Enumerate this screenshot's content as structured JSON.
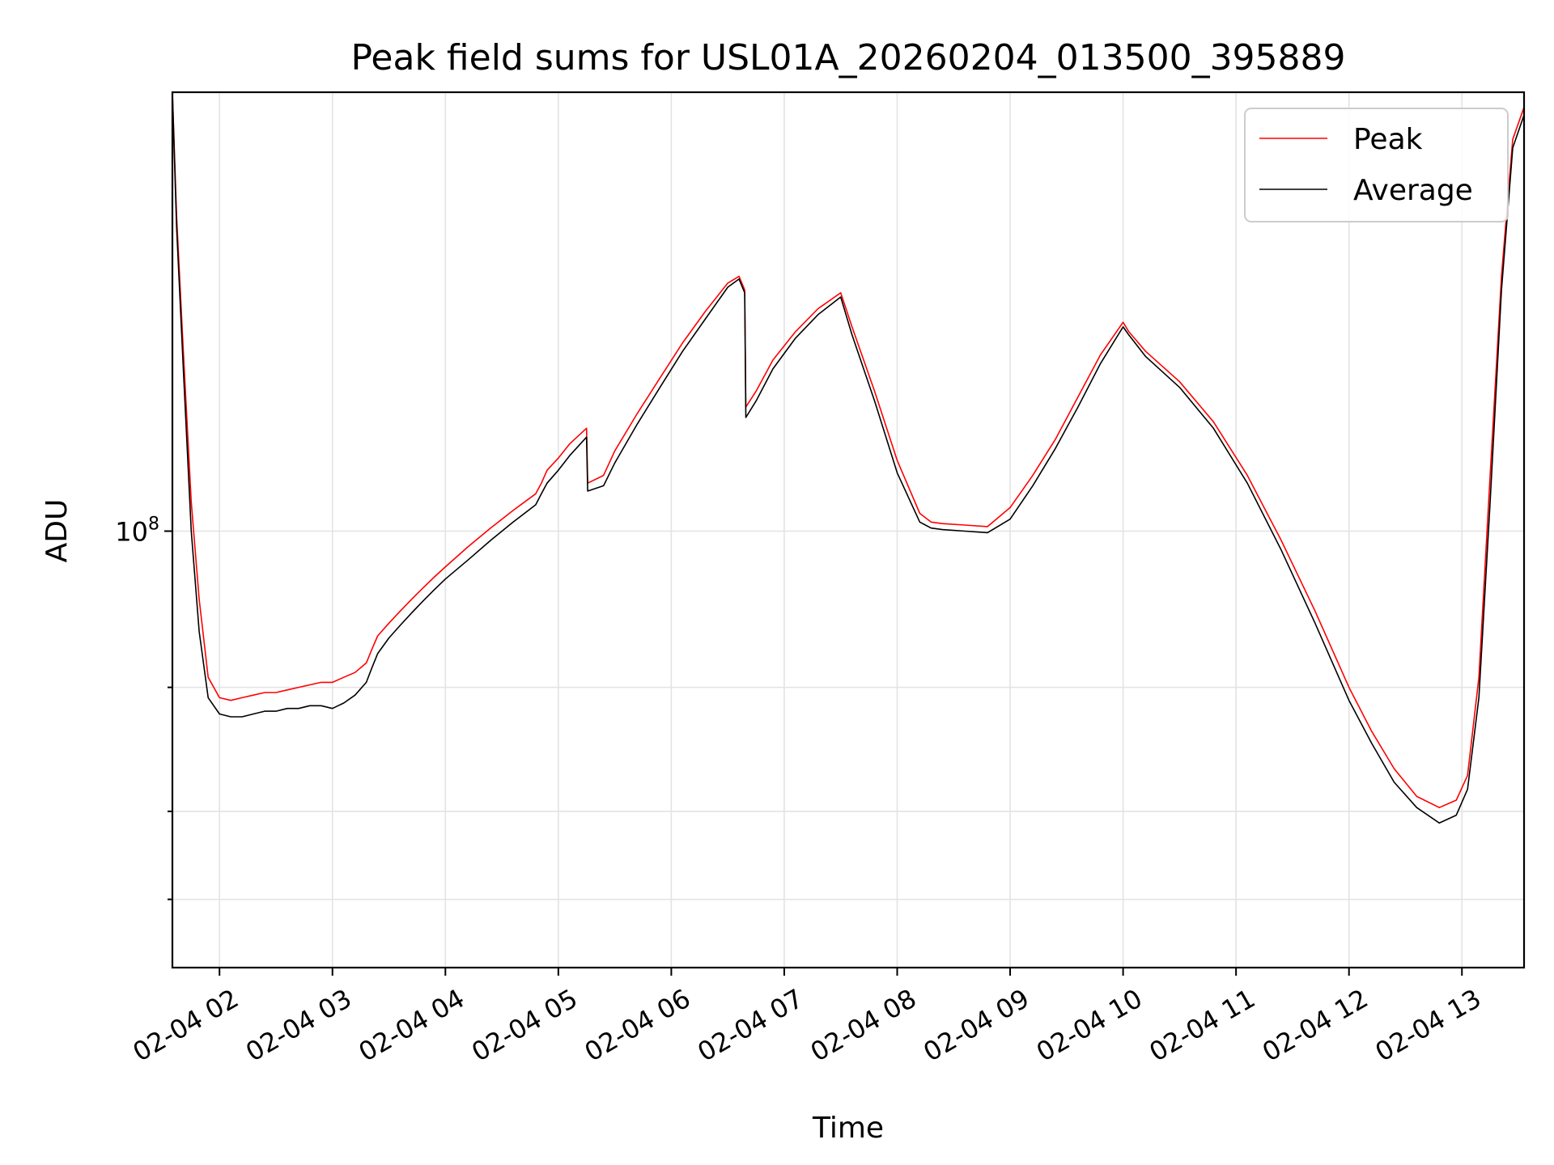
{
  "chart_data": {
    "type": "line",
    "title": "Peak field sums for USL01A_20260204_013500_395889",
    "xlabel": "Time",
    "ylabel": "ADU",
    "x_ticks": [
      "02-04 02",
      "02-04 03",
      "02-04 04",
      "02-04 05",
      "02-04 06",
      "02-04 07",
      "02-04 08",
      "02-04 09",
      "02-04 10",
      "02-04 11",
      "02-04 12",
      "02-04 13"
    ],
    "x_tick_hours": [
      2,
      3,
      4,
      5,
      6,
      7,
      8,
      9,
      10,
      11,
      12,
      13
    ],
    "y_scale": "log",
    "y_tick_major": {
      "value": 100000000,
      "base": "10",
      "exponent": "8"
    },
    "y_minor_ticks": [
      30000000,
      40000000,
      60000000
    ],
    "xlim_hours": [
      1.583,
      13.55
    ],
    "ylim": [
      24000000,
      420000000
    ],
    "grid": true,
    "legend_position": "upper-right",
    "x_unit": "hour of day (2026-02-04)",
    "series": [
      {
        "name": "Peak",
        "color": "#ff0000",
        "x": [
          1.583,
          1.62,
          1.68,
          1.75,
          1.82,
          1.9,
          2.0,
          2.1,
          2.2,
          2.3,
          2.4,
          2.5,
          2.6,
          2.7,
          2.8,
          2.9,
          3.0,
          3.05,
          3.1,
          3.2,
          3.3,
          3.35,
          3.4,
          3.5,
          3.6,
          3.7,
          3.8,
          3.9,
          4.0,
          4.2,
          4.4,
          4.6,
          4.8,
          4.85,
          4.9,
          5.0,
          5.1,
          5.25,
          5.26,
          5.4,
          5.5,
          5.7,
          5.9,
          6.1,
          6.3,
          6.5,
          6.6,
          6.65,
          6.66,
          6.75,
          6.9,
          7.1,
          7.3,
          7.5,
          7.6,
          7.8,
          8.0,
          8.2,
          8.3,
          8.4,
          8.6,
          8.8,
          9.0,
          9.2,
          9.4,
          9.6,
          9.8,
          10.0,
          10.05,
          10.2,
          10.5,
          10.8,
          11.1,
          11.4,
          11.7,
          12.0,
          12.2,
          12.4,
          12.6,
          12.8,
          12.95,
          13.05,
          13.15,
          13.25,
          13.35,
          13.45,
          13.55
        ],
        "y": [
          420000000,
          280000000,
          180000000,
          110000000,
          80000000,
          62000000,
          58000000,
          57500000,
          58000000,
          58500000,
          59000000,
          59000000,
          59500000,
          60000000,
          60500000,
          61000000,
          61000000,
          61500000,
          62000000,
          63000000,
          65000000,
          68000000,
          71000000,
          74000000,
          77000000,
          80000000,
          83000000,
          86000000,
          89000000,
          95000000,
          101000000,
          107000000,
          113000000,
          117000000,
          122000000,
          127000000,
          133000000,
          140000000,
          117000000,
          120000000,
          130000000,
          147000000,
          165000000,
          185000000,
          205000000,
          225000000,
          230000000,
          220000000,
          150000000,
          158000000,
          175000000,
          192000000,
          207000000,
          218000000,
          195000000,
          158000000,
          126000000,
          106000000,
          103000000,
          102500000,
          102000000,
          101500000,
          108000000,
          120000000,
          135000000,
          155000000,
          178000000,
          198000000,
          192000000,
          180000000,
          163000000,
          143000000,
          120000000,
          97000000,
          77000000,
          60000000,
          52000000,
          46000000,
          42000000,
          40500000,
          41500000,
          45000000,
          62000000,
          120000000,
          230000000,
          360000000,
          400000000
        ]
      },
      {
        "name": "Average",
        "color": "#000000",
        "x": [
          1.583,
          1.62,
          1.68,
          1.75,
          1.82,
          1.9,
          2.0,
          2.1,
          2.2,
          2.3,
          2.4,
          2.5,
          2.6,
          2.7,
          2.8,
          2.9,
          3.0,
          3.05,
          3.1,
          3.2,
          3.3,
          3.35,
          3.4,
          3.5,
          3.6,
          3.7,
          3.8,
          3.9,
          4.0,
          4.2,
          4.4,
          4.6,
          4.8,
          4.85,
          4.9,
          5.0,
          5.1,
          5.25,
          5.26,
          5.4,
          5.5,
          5.7,
          5.9,
          6.1,
          6.3,
          6.5,
          6.6,
          6.65,
          6.66,
          6.75,
          6.9,
          7.1,
          7.3,
          7.5,
          7.6,
          7.8,
          8.0,
          8.2,
          8.3,
          8.4,
          8.6,
          8.8,
          9.0,
          9.2,
          9.4,
          9.6,
          9.8,
          10.0,
          10.05,
          10.2,
          10.5,
          10.8,
          11.1,
          11.4,
          11.7,
          12.0,
          12.2,
          12.4,
          12.6,
          12.8,
          12.95,
          13.05,
          13.15,
          13.25,
          13.35,
          13.45,
          13.55
        ],
        "y": [
          420000000,
          270000000,
          170000000,
          100000000,
          72000000,
          58000000,
          55000000,
          54500000,
          54500000,
          55000000,
          55500000,
          55500000,
          56000000,
          56000000,
          56500000,
          56500000,
          56000000,
          56500000,
          57000000,
          58500000,
          61000000,
          64000000,
          67000000,
          70500000,
          73500000,
          76500000,
          79500000,
          82500000,
          85500000,
          91000000,
          97000000,
          103000000,
          109000000,
          113000000,
          117000000,
          122000000,
          128000000,
          136000000,
          114000000,
          116000000,
          125000000,
          142000000,
          160000000,
          180000000,
          200000000,
          222000000,
          228000000,
          218000000,
          145000000,
          153000000,
          170000000,
          188000000,
          203000000,
          215000000,
          190000000,
          153000000,
          121000000,
          103000000,
          101000000,
          100500000,
          100000000,
          99500000,
          104000000,
          116000000,
          131000000,
          150000000,
          173000000,
          195000000,
          190000000,
          177000000,
          160000000,
          140000000,
          117000000,
          94000000,
          74000000,
          57500000,
          50000000,
          44000000,
          40500000,
          38500000,
          39500000,
          43000000,
          58000000,
          110000000,
          220000000,
          350000000,
          390000000
        ]
      }
    ]
  }
}
